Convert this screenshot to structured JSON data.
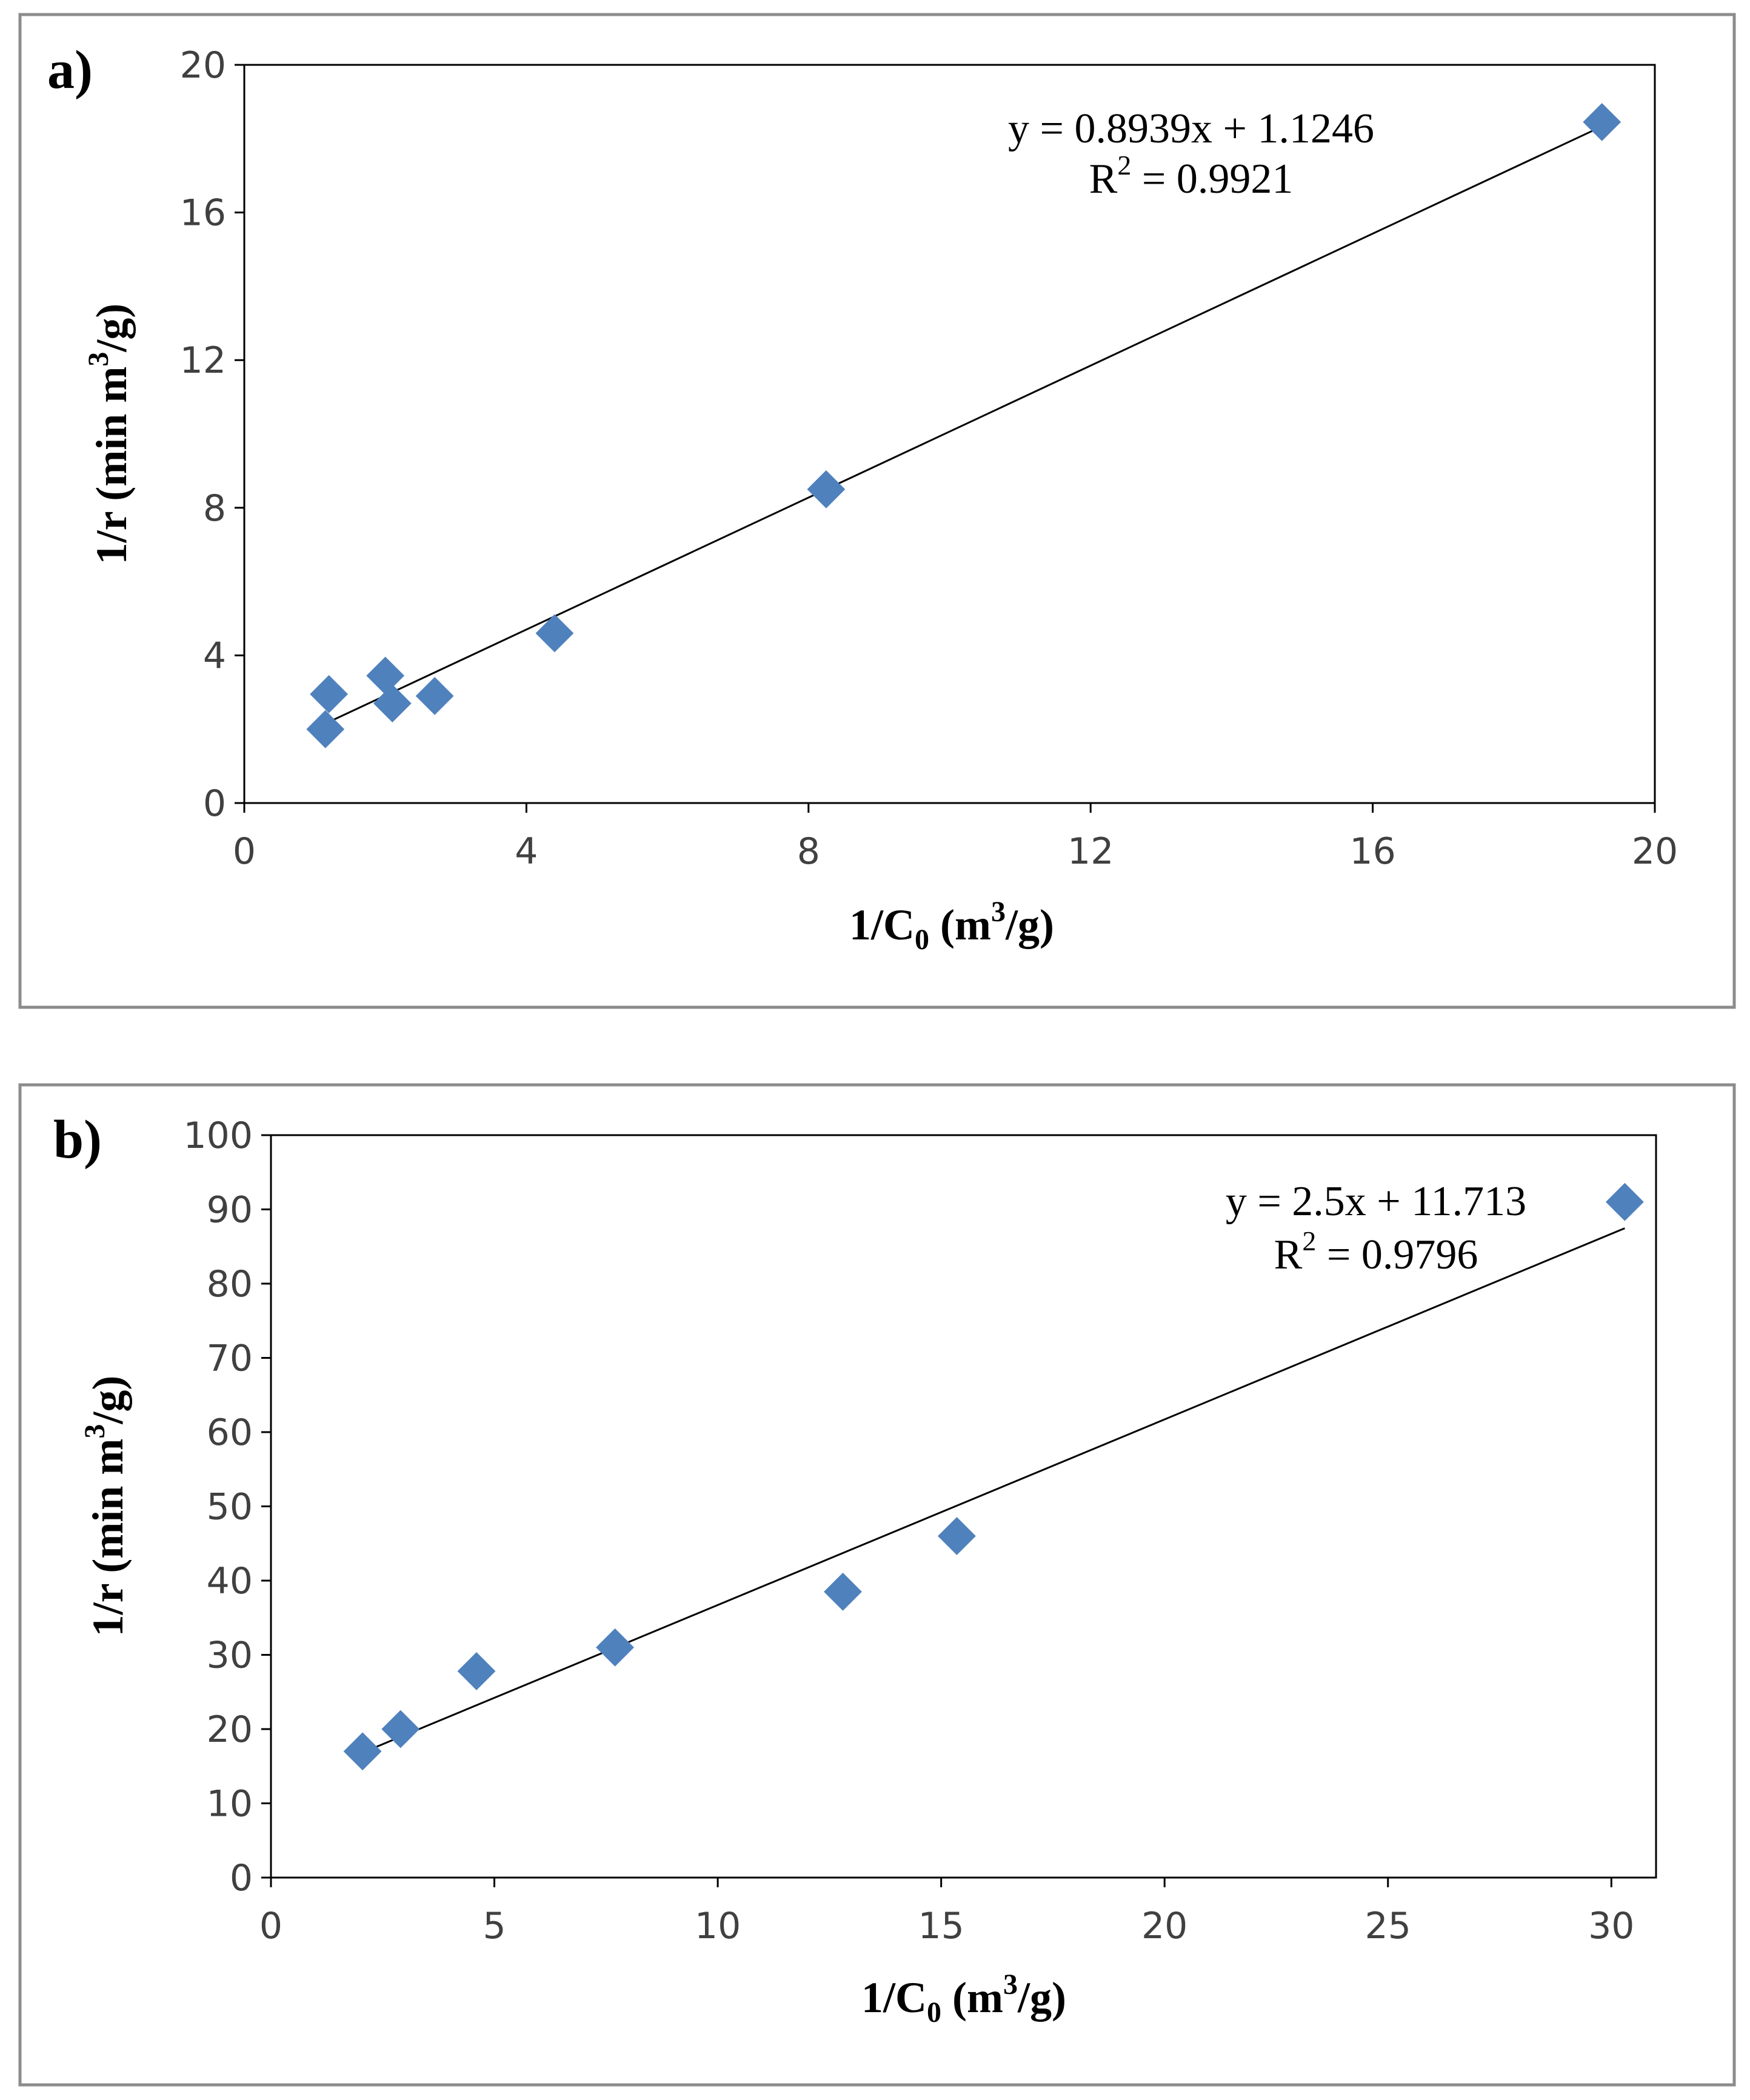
{
  "colors": {
    "marker": "#4F81BD",
    "trendline": "#000000",
    "frame": "#8C8C8C",
    "axis": "#000000"
  },
  "chart_data": [
    {
      "type": "scatter",
      "panel_label": "a)",
      "xlabel": {
        "main": "1/C",
        "sub": "0",
        "rest_pre": " (m",
        "sup": "3",
        "rest_post": "/g)"
      },
      "ylabel": {
        "main": "1/r (min m",
        "sup": "3",
        "rest_post": "/g)"
      },
      "xlim": [
        0,
        20
      ],
      "ylim": [
        0,
        20
      ],
      "xticks": [
        0,
        4,
        8,
        12,
        16,
        20
      ],
      "yticks": [
        0,
        4,
        8,
        12,
        16,
        20
      ],
      "points": [
        [
          1.15,
          2.0
        ],
        [
          1.2,
          2.95
        ],
        [
          2.0,
          3.45
        ],
        [
          2.1,
          2.7
        ],
        [
          2.7,
          2.9
        ],
        [
          4.4,
          4.6
        ],
        [
          8.25,
          8.5
        ],
        [
          19.25,
          18.45
        ]
      ],
      "trendline": {
        "slope": 0.8939,
        "intercept": 1.1246,
        "x_range": [
          1.15,
          19.25
        ]
      },
      "equation": {
        "line1": "y = 0.8939x + 1.1246",
        "r2_main": "R",
        "r2_sup": "2",
        "r2_rest": " = 0.9921"
      }
    },
    {
      "type": "scatter",
      "panel_label": "b)",
      "xlabel": {
        "main": "1/C",
        "sub": "0",
        "rest_pre": " (m",
        "sup": "3",
        "rest_post": "/g)"
      },
      "ylabel": {
        "main": "1/r (min m",
        "sup": "3",
        "rest_post": "/g)"
      },
      "xlim": [
        0,
        31
      ],
      "ylim": [
        0,
        100
      ],
      "xticks": [
        0,
        5,
        10,
        15,
        20,
        25,
        30
      ],
      "yticks": [
        0,
        10,
        20,
        30,
        40,
        50,
        60,
        70,
        80,
        90,
        100
      ],
      "points": [
        [
          2.05,
          17.0
        ],
        [
          2.9,
          20.0
        ],
        [
          4.6,
          27.8
        ],
        [
          7.7,
          31.0
        ],
        [
          12.8,
          38.5
        ],
        [
          15.35,
          46.0
        ],
        [
          30.3,
          91.0
        ]
      ],
      "trendline": {
        "slope": 2.5,
        "intercept": 11.713,
        "x_range": [
          2.05,
          30.3
        ]
      },
      "equation": {
        "line1": "y = 2.5x + 11.713",
        "r2_main": "R",
        "r2_sup": "2",
        "r2_rest": " = 0.9796"
      }
    }
  ]
}
